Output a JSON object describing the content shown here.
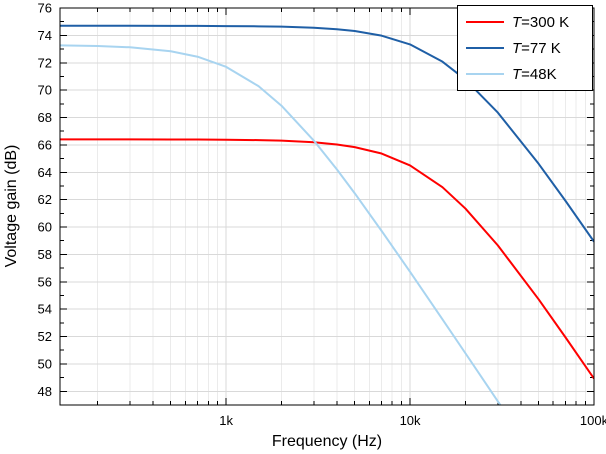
{
  "chart_data": {
    "type": "line",
    "title": "",
    "xlabel": "Frequency (Hz)",
    "ylabel": "Voltage gain (dB)",
    "x_scale": "log",
    "xlim": [
      125,
      100000
    ],
    "ylim": [
      47,
      76
    ],
    "y_ticks": [
      48,
      50,
      52,
      54,
      56,
      58,
      60,
      62,
      64,
      66,
      68,
      70,
      72,
      74,
      76
    ],
    "x_ticks": [
      {
        "value": 1000,
        "label": "1k"
      },
      {
        "value": 10000,
        "label": "10k"
      },
      {
        "value": 100000,
        "label": "100k"
      }
    ],
    "grid": true,
    "legend_position": "top-right",
    "series": [
      {
        "name": "T=300 K",
        "legend_var": "T",
        "legend_rest": "=300 K",
        "color": "#ff0000",
        "points": [
          [
            125,
            66.4
          ],
          [
            200,
            66.4
          ],
          [
            300,
            66.4
          ],
          [
            500,
            66.39
          ],
          [
            700,
            66.39
          ],
          [
            1000,
            66.38
          ],
          [
            1500,
            66.35
          ],
          [
            2000,
            66.31
          ],
          [
            3000,
            66.19
          ],
          [
            4000,
            66.03
          ],
          [
            5000,
            65.84
          ],
          [
            7000,
            65.37
          ],
          [
            10000,
            64.5
          ],
          [
            15000,
            62.91
          ],
          [
            20000,
            61.35
          ],
          [
            30000,
            58.66
          ],
          [
            50000,
            54.72
          ],
          [
            70000,
            51.94
          ],
          [
            100000,
            48.93
          ]
        ]
      },
      {
        "name": "T=77 K",
        "legend_var": "T",
        "legend_rest": "=77 K",
        "color": "#1f5fa6",
        "points": [
          [
            125,
            74.7
          ],
          [
            200,
            74.7
          ],
          [
            300,
            74.7
          ],
          [
            500,
            74.69
          ],
          [
            700,
            74.69
          ],
          [
            1000,
            74.68
          ],
          [
            1500,
            74.66
          ],
          [
            2000,
            74.64
          ],
          [
            3000,
            74.56
          ],
          [
            4000,
            74.45
          ],
          [
            5000,
            74.32
          ],
          [
            7000,
            73.98
          ],
          [
            10000,
            73.34
          ],
          [
            15000,
            72.08
          ],
          [
            20000,
            70.77
          ],
          [
            30000,
            68.36
          ],
          [
            50000,
            64.62
          ],
          [
            70000,
            61.91
          ],
          [
            100000,
            58.93
          ]
        ]
      },
      {
        "name": "T=48K",
        "legend_var": "T",
        "legend_rest": "=48K",
        "color": "#a8d4f0",
        "points": [
          [
            125,
            73.27
          ],
          [
            200,
            73.22
          ],
          [
            300,
            73.13
          ],
          [
            500,
            72.84
          ],
          [
            700,
            72.44
          ],
          [
            1000,
            71.7
          ],
          [
            1500,
            70.29
          ],
          [
            2000,
            68.86
          ],
          [
            3000,
            66.31
          ],
          [
            4000,
            64.21
          ],
          [
            5000,
            62.47
          ],
          [
            7000,
            59.72
          ],
          [
            10000,
            56.73
          ],
          [
            15000,
            53.26
          ],
          [
            20000,
            50.78
          ],
          [
            30000,
            47.27
          ],
          [
            40000,
            44.81
          ]
        ]
      }
    ]
  }
}
